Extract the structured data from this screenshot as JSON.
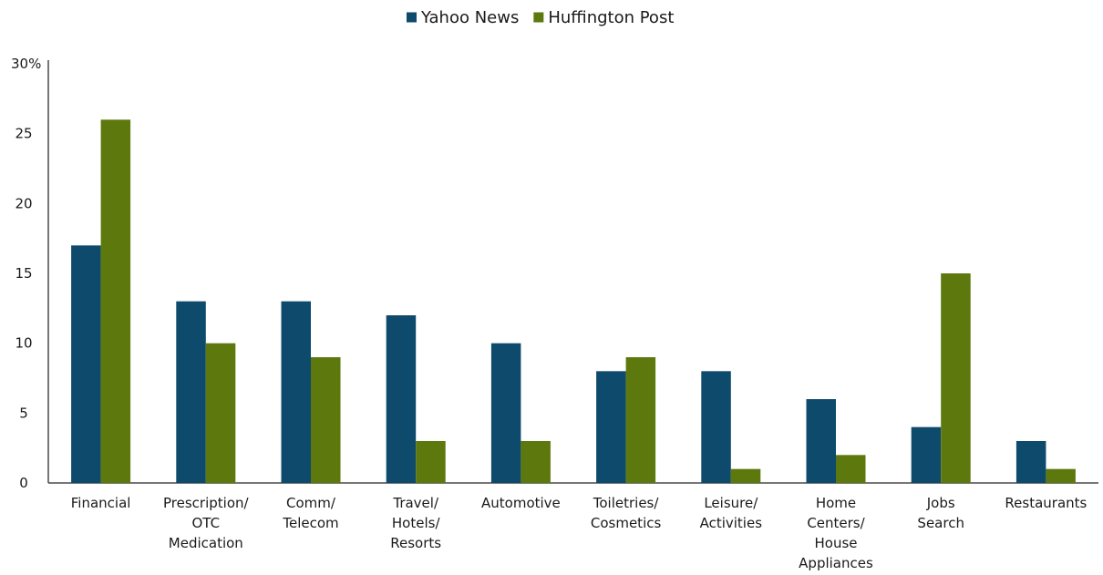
{
  "chart_data": {
    "type": "bar",
    "title": "",
    "xlabel": "",
    "ylabel": "",
    "ylim": [
      0,
      30
    ],
    "y_ticks": [
      "0",
      "5",
      "10",
      "15",
      "20",
      "25",
      "30%"
    ],
    "y_tick_values": [
      0,
      5,
      10,
      15,
      20,
      25,
      30
    ],
    "grid": false,
    "legend_position": "top-center",
    "categories": [
      [
        "Financial"
      ],
      [
        "Prescription/",
        "OTC",
        "Medication"
      ],
      [
        "Comm/",
        "Telecom"
      ],
      [
        "Travel/",
        "Hotels/",
        "Resorts"
      ],
      [
        "Automotive"
      ],
      [
        "Toiletries/",
        "Cosmetics"
      ],
      [
        "Leisure/",
        "Activities"
      ],
      [
        "Home",
        "Centers/",
        "House",
        "Appliances"
      ],
      [
        "Jobs",
        "Search"
      ],
      [
        "Restaurants"
      ]
    ],
    "series": [
      {
        "name": "Yahoo News",
        "color": "#0d4a6b",
        "values": [
          17,
          13,
          13,
          12,
          10,
          8,
          8,
          6,
          4,
          3
        ]
      },
      {
        "name": "Huffington Post",
        "color": "#5d780d",
        "values": [
          26,
          10,
          9,
          3,
          3,
          9,
          1,
          2,
          15,
          1
        ]
      }
    ]
  }
}
